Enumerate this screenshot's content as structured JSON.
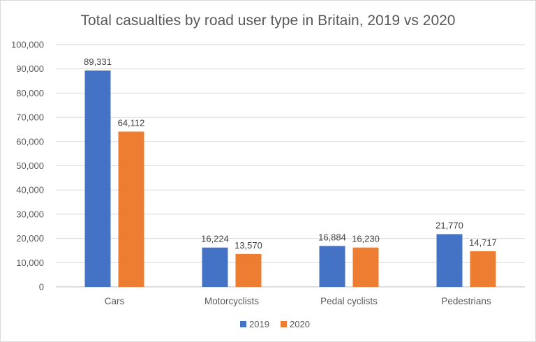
{
  "chart_data": {
    "type": "bar",
    "title": "Total casualties by road user type in Britain, 2019 vs 2020",
    "categories": [
      "Cars",
      "Motorcyclists",
      "Pedal cyclists",
      "Pedestrians"
    ],
    "series": [
      {
        "name": "2019",
        "color": "#4472c4",
        "values": [
          89331,
          16224,
          16884,
          21770
        ],
        "labels": [
          "89,331",
          "16,224",
          "16,884",
          "21,770"
        ]
      },
      {
        "name": "2020",
        "color": "#ed7d31",
        "values": [
          64112,
          13570,
          16230,
          14717
        ],
        "labels": [
          "64,112",
          "13,570",
          "16,230",
          "14,717"
        ]
      }
    ],
    "ylim": [
      0,
      100000
    ],
    "yticks": [
      0,
      10000,
      20000,
      30000,
      40000,
      50000,
      60000,
      70000,
      80000,
      90000,
      100000
    ],
    "ytick_labels": [
      "0",
      "10,000",
      "20,000",
      "30,000",
      "40,000",
      "50,000",
      "60,000",
      "70,000",
      "80,000",
      "90,000",
      "100,000"
    ],
    "grid": true,
    "legend_position": "bottom"
  }
}
